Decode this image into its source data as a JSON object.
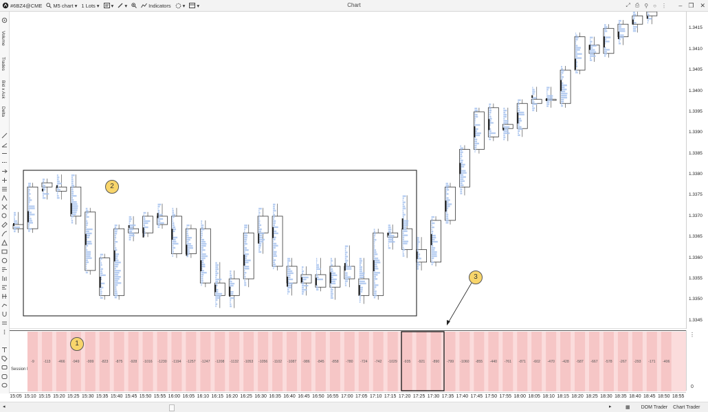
{
  "toolbar": {
    "symbol": "#6BZ4@CME",
    "timeframe": "M5 chart",
    "lots": "1 Lots",
    "indicators_label": "Indicators",
    "title": "Chart"
  },
  "sidebar": {
    "volume_label": "Volume",
    "trades_label": "Trades",
    "bidask_label": "Bid x Ask",
    "delta_label": "Delta"
  },
  "price_axis": {
    "ticks": [
      "1.3415",
      "1.3410",
      "1.3405",
      "1.3400",
      "1.3395",
      "1.3390",
      "1.3385",
      "1.3380",
      "1.3375",
      "1.3370",
      "1.3365",
      "1.3360",
      "1.3355",
      "1.3350",
      "1.3345"
    ]
  },
  "delta_panel": {
    "label": "Session Delta",
    "values": [
      "-9",
      "-113",
      "-466",
      "-949",
      "-999",
      "-823",
      "-875",
      "-928",
      "-1016",
      "-1230",
      "-1194",
      "-1257",
      "-1247",
      "-1208",
      "-1132",
      "-1053",
      "-1056",
      "-1102",
      "-1087",
      "-986",
      "-845",
      "-858",
      "-780",
      "-724",
      "-742",
      "-1029",
      "-935",
      "-921",
      "-890",
      "-799",
      "-1060",
      "-855",
      "-440",
      "-761",
      "-871",
      "-602",
      "-470",
      "-428",
      "-587",
      "-667",
      "-578",
      "-267",
      "-293",
      "-171",
      "-406"
    ],
    "axis_zero": "0",
    "bg_color": "#fbdcdc",
    "bar_color": "#f6c6c6"
  },
  "time_axis": {
    "labels": [
      "15:05",
      "15:10",
      "15:15",
      "15:20",
      "15:25",
      "15:30",
      "15:35",
      "15:40",
      "15:45",
      "15:50",
      "15:55",
      "16:00",
      "16:05",
      "16:10",
      "16:15",
      "16:20",
      "16:25",
      "16:30",
      "16:35",
      "16:40",
      "16:45",
      "16:50",
      "16:55",
      "17:00",
      "17:05",
      "17:10",
      "17:15",
      "17:20",
      "17:25",
      "17:30",
      "17:35",
      "17:40",
      "17:45",
      "17:50",
      "17:55",
      "18:00",
      "18:05",
      "18:10",
      "18:15",
      "18:20",
      "18:25",
      "18:30",
      "18:35",
      "18:40",
      "18:45",
      "18:50",
      "18:55"
    ]
  },
  "callouts": {
    "one": "1",
    "two": "2",
    "three": "3"
  },
  "status": {
    "dom_trader": "DOM Trader",
    "chart_trader": "Chart Trader"
  },
  "chart_data": {
    "type": "candlestick",
    "timeframe": "M5",
    "ylim": [
      1.3343,
      1.3419
    ],
    "candles": [
      {
        "t": "15:05",
        "o": 1.3368,
        "h": 1.3371,
        "l": 1.3366,
        "c": 1.3367
      },
      {
        "t": "15:10",
        "o": 1.3367,
        "h": 1.3378,
        "l": 1.3366,
        "c": 1.3377
      },
      {
        "t": "15:15",
        "o": 1.3377,
        "h": 1.3379,
        "l": 1.3374,
        "c": 1.3378
      },
      {
        "t": "15:20",
        "o": 1.3377,
        "h": 1.338,
        "l": 1.3374,
        "c": 1.3376
      },
      {
        "t": "15:25",
        "o": 1.3377,
        "h": 1.338,
        "l": 1.3368,
        "c": 1.337
      },
      {
        "t": "15:30",
        "o": 1.3371,
        "h": 1.3372,
        "l": 1.3356,
        "c": 1.3357
      },
      {
        "t": "15:35",
        "o": 1.336,
        "h": 1.3361,
        "l": 1.335,
        "c": 1.3351
      },
      {
        "t": "15:40",
        "o": 1.3351,
        "h": 1.3368,
        "l": 1.335,
        "c": 1.3367
      },
      {
        "t": "15:45",
        "o": 1.3367,
        "h": 1.337,
        "l": 1.3364,
        "c": 1.3366
      },
      {
        "t": "15:50",
        "o": 1.3366,
        "h": 1.3371,
        "l": 1.3365,
        "c": 1.337
      },
      {
        "t": "15:55",
        "o": 1.337,
        "h": 1.3373,
        "l": 1.3367,
        "c": 1.3368
      },
      {
        "t": "16:00",
        "o": 1.337,
        "h": 1.3372,
        "l": 1.336,
        "c": 1.3361
      },
      {
        "t": "16:05",
        "o": 1.3361,
        "h": 1.3368,
        "l": 1.336,
        "c": 1.3367
      },
      {
        "t": "16:10",
        "o": 1.3367,
        "h": 1.3369,
        "l": 1.3353,
        "c": 1.3354
      },
      {
        "t": "16:15",
        "o": 1.3354,
        "h": 1.3359,
        "l": 1.3348,
        "c": 1.3351
      },
      {
        "t": "16:20",
        "o": 1.3351,
        "h": 1.3357,
        "l": 1.3348,
        "c": 1.3355
      },
      {
        "t": "16:25",
        "o": 1.3355,
        "h": 1.3368,
        "l": 1.3353,
        "c": 1.3366
      },
      {
        "t": "16:30",
        "o": 1.3366,
        "h": 1.3372,
        "l": 1.3361,
        "c": 1.337
      },
      {
        "t": "16:35",
        "o": 1.337,
        "h": 1.3373,
        "l": 1.3357,
        "c": 1.3358
      },
      {
        "t": "16:40",
        "o": 1.3358,
        "h": 1.336,
        "l": 1.3351,
        "c": 1.3354
      },
      {
        "t": "16:45",
        "o": 1.3354,
        "h": 1.3358,
        "l": 1.3351,
        "c": 1.3356
      },
      {
        "t": "16:50",
        "o": 1.3356,
        "h": 1.336,
        "l": 1.3352,
        "c": 1.3353
      },
      {
        "t": "16:55",
        "o": 1.3353,
        "h": 1.336,
        "l": 1.335,
        "c": 1.3358
      },
      {
        "t": "17:00",
        "o": 1.3358,
        "h": 1.3363,
        "l": 1.3353,
        "c": 1.3355
      },
      {
        "t": "17:05",
        "o": 1.3355,
        "h": 1.336,
        "l": 1.3349,
        "c": 1.3351
      },
      {
        "t": "17:10",
        "o": 1.3351,
        "h": 1.3367,
        "l": 1.335,
        "c": 1.3366
      },
      {
        "t": "17:15",
        "o": 1.3366,
        "h": 1.3368,
        "l": 1.3362,
        "c": 1.3365
      },
      {
        "t": "17:20",
        "o": 1.3367,
        "h": 1.3375,
        "l": 1.336,
        "c": 1.3362
      },
      {
        "t": "17:25",
        "o": 1.3362,
        "h": 1.3365,
        "l": 1.3357,
        "c": 1.3359
      },
      {
        "t": "17:30",
        "o": 1.3359,
        "h": 1.337,
        "l": 1.3358,
        "c": 1.3369
      },
      {
        "t": "17:35",
        "o": 1.3369,
        "h": 1.3378,
        "l": 1.3368,
        "c": 1.3377
      },
      {
        "t": "17:40",
        "o": 1.3377,
        "h": 1.3387,
        "l": 1.3375,
        "c": 1.3386
      },
      {
        "t": "17:45",
        "o": 1.3386,
        "h": 1.3396,
        "l": 1.3385,
        "c": 1.3395
      },
      {
        "t": "17:50",
        "o": 1.3396,
        "h": 1.3397,
        "l": 1.3388,
        "c": 1.3389
      },
      {
        "t": "17:55",
        "o": 1.3392,
        "h": 1.3396,
        "l": 1.3388,
        "c": 1.3391
      },
      {
        "t": "18:00",
        "o": 1.3391,
        "h": 1.3398,
        "l": 1.3389,
        "c": 1.3397
      },
      {
        "t": "18:05",
        "o": 1.3397,
        "h": 1.3401,
        "l": 1.3395,
        "c": 1.3398
      },
      {
        "t": "18:10",
        "o": 1.3398,
        "h": 1.3401,
        "l": 1.3396,
        "c": 1.3398
      },
      {
        "t": "18:15",
        "o": 1.3397,
        "h": 1.3406,
        "l": 1.3396,
        "c": 1.3405
      },
      {
        "t": "18:20",
        "o": 1.3405,
        "h": 1.3414,
        "l": 1.3404,
        "c": 1.3413
      },
      {
        "t": "18:25",
        "o": 1.3411,
        "h": 1.3413,
        "l": 1.3407,
        "c": 1.3409
      },
      {
        "t": "18:30",
        "o": 1.3409,
        "h": 1.3416,
        "l": 1.3408,
        "c": 1.3415
      },
      {
        "t": "18:35",
        "o": 1.3413,
        "h": 1.3417,
        "l": 1.3411,
        "c": 1.3416
      },
      {
        "t": "18:40",
        "o": 1.3416,
        "h": 1.3419,
        "l": 1.3414,
        "c": 1.3418
      },
      {
        "t": "18:45",
        "o": 1.3418,
        "h": 1.3419,
        "l": 1.3416,
        "c": 1.3419
      }
    ]
  }
}
